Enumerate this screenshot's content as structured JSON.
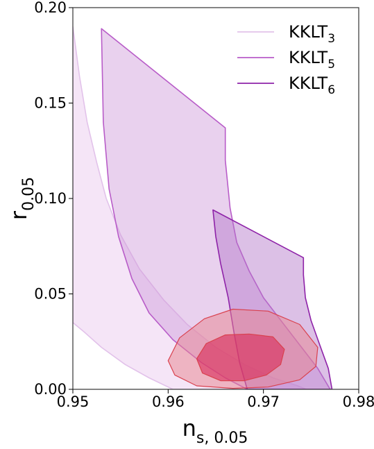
{
  "chart_data": {
    "type": "area",
    "title": "",
    "xlabel": {
      "main": "n",
      "sub": "s, 0.05"
    },
    "ylabel": {
      "main": "r",
      "sub": "0.05"
    },
    "xlim": [
      0.95,
      0.98
    ],
    "ylim": [
      0.0,
      0.2
    ],
    "xticks": [
      0.95,
      0.96,
      0.97,
      0.98
    ],
    "yticks": [
      0.0,
      0.05,
      0.1,
      0.15,
      0.2
    ],
    "xtick_labels": [
      "0.95",
      "0.96",
      "0.97",
      "0.98"
    ],
    "ytick_labels": [
      "0.00",
      "0.05",
      "0.10",
      "0.15",
      "0.20"
    ],
    "grid": false,
    "legend_position": "top-right",
    "series": [
      {
        "name": {
          "main": "KKLT",
          "sub": "3"
        },
        "color": "#e2c2ea",
        "fill": "#f3e1f6",
        "fill_opacity": 0.85,
        "polygon": [
          [
            0.95,
            0.19
          ],
          [
            0.9507,
            0.164
          ],
          [
            0.9515,
            0.14
          ],
          [
            0.9525,
            0.119
          ],
          [
            0.9535,
            0.1
          ],
          [
            0.955,
            0.081
          ],
          [
            0.957,
            0.063
          ],
          [
            0.9595,
            0.047
          ],
          [
            0.962,
            0.034
          ],
          [
            0.965,
            0.022
          ],
          [
            0.968,
            0.013
          ],
          [
            0.971,
            0.006
          ],
          [
            0.9735,
            0.002
          ],
          [
            0.9745,
            0.0
          ],
          [
            0.9605,
            0.0
          ],
          [
            0.958,
            0.006
          ],
          [
            0.9555,
            0.013
          ],
          [
            0.953,
            0.022
          ],
          [
            0.9512,
            0.03
          ],
          [
            0.95,
            0.035
          ]
        ]
      },
      {
        "name": {
          "main": "KKLT",
          "sub": "5"
        },
        "color": "#b85cc8",
        "fill": "#cf9ad9",
        "fill_opacity": 0.45,
        "polygon": [
          [
            0.953,
            0.189
          ],
          [
            0.966,
            0.137
          ],
          [
            0.966,
            0.12
          ],
          [
            0.9665,
            0.095
          ],
          [
            0.9672,
            0.077
          ],
          [
            0.9685,
            0.062
          ],
          [
            0.97,
            0.048
          ],
          [
            0.972,
            0.035
          ],
          [
            0.974,
            0.022
          ],
          [
            0.9757,
            0.011
          ],
          [
            0.977,
            0.0
          ],
          [
            0.9683,
            0.0
          ],
          [
            0.966,
            0.006
          ],
          [
            0.9635,
            0.014
          ],
          [
            0.9605,
            0.026
          ],
          [
            0.958,
            0.04
          ],
          [
            0.9562,
            0.058
          ],
          [
            0.9548,
            0.08
          ],
          [
            0.9538,
            0.105
          ],
          [
            0.9532,
            0.14
          ]
        ]
      },
      {
        "name": {
          "main": "KKLT",
          "sub": "6"
        },
        "color": "#8e22a8",
        "fill": "#b273c7",
        "fill_opacity": 0.45,
        "polygon": [
          [
            0.9647,
            0.094
          ],
          [
            0.9742,
            0.069
          ],
          [
            0.9742,
            0.06
          ],
          [
            0.9744,
            0.048
          ],
          [
            0.975,
            0.036
          ],
          [
            0.976,
            0.022
          ],
          [
            0.9768,
            0.011
          ],
          [
            0.9772,
            0.0
          ],
          [
            0.9683,
            0.0
          ],
          [
            0.9675,
            0.014
          ],
          [
            0.9669,
            0.03
          ],
          [
            0.9663,
            0.048
          ],
          [
            0.9655,
            0.066
          ],
          [
            0.965,
            0.08
          ]
        ]
      }
    ],
    "contours": [
      {
        "level": "outer",
        "fill": "#e8838e",
        "stroke": "#d9414e",
        "fill_opacity": 0.5,
        "polygon": [
          [
            0.96,
            0.015
          ],
          [
            0.9612,
            0.027
          ],
          [
            0.9638,
            0.037
          ],
          [
            0.9668,
            0.042
          ],
          [
            0.9705,
            0.041
          ],
          [
            0.9738,
            0.034
          ],
          [
            0.9757,
            0.022
          ],
          [
            0.9755,
            0.012
          ],
          [
            0.9738,
            0.005
          ],
          [
            0.9705,
            0.0012
          ],
          [
            0.9668,
            0.0005
          ],
          [
            0.963,
            0.0018
          ],
          [
            0.9607,
            0.0075
          ]
        ]
      },
      {
        "level": "inner",
        "fill": "#d82d5a",
        "stroke": "#d9414e",
        "fill_opacity": 0.62,
        "polygon": [
          [
            0.963,
            0.016
          ],
          [
            0.964,
            0.024
          ],
          [
            0.966,
            0.0285
          ],
          [
            0.9685,
            0.029
          ],
          [
            0.971,
            0.0275
          ],
          [
            0.9722,
            0.021
          ],
          [
            0.9718,
            0.013
          ],
          [
            0.9703,
            0.0075
          ],
          [
            0.968,
            0.0045
          ],
          [
            0.9655,
            0.0045
          ],
          [
            0.9636,
            0.0085
          ]
        ]
      }
    ]
  }
}
